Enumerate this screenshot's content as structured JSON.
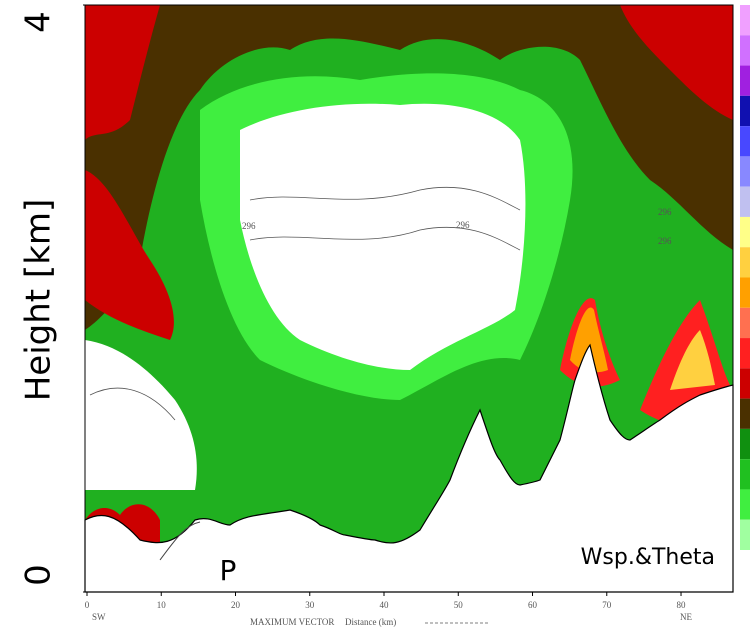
{
  "chart_data": {
    "type": "contour",
    "ylabel": "Height [km]",
    "xlabel": "Distance (km)",
    "xlim": [
      0,
      87
    ],
    "xticks": [
      0,
      10,
      20,
      30,
      40,
      50,
      60,
      70,
      80
    ],
    "ylim": [
      0,
      4
    ],
    "yticks": [
      0,
      4
    ],
    "annotations": [
      "P",
      "Wsp.&Theta",
      "SW",
      "NE",
      "MAXIMUM VECTOR",
      "296",
      "296",
      "296",
      "296"
    ],
    "colorbar": [
      "#f0a0ff",
      "#d070ff",
      "#a020e0",
      "#1010b0",
      "#4848ff",
      "#8888ff",
      "#c0c0f0",
      "#ffff88",
      "#ffd040",
      "#ffa000",
      "#ff7050",
      "#ff2020",
      "#cc0000",
      "#4a3000",
      "#109010",
      "#20c020",
      "#40ee40",
      "#a0ffa0"
    ]
  }
}
